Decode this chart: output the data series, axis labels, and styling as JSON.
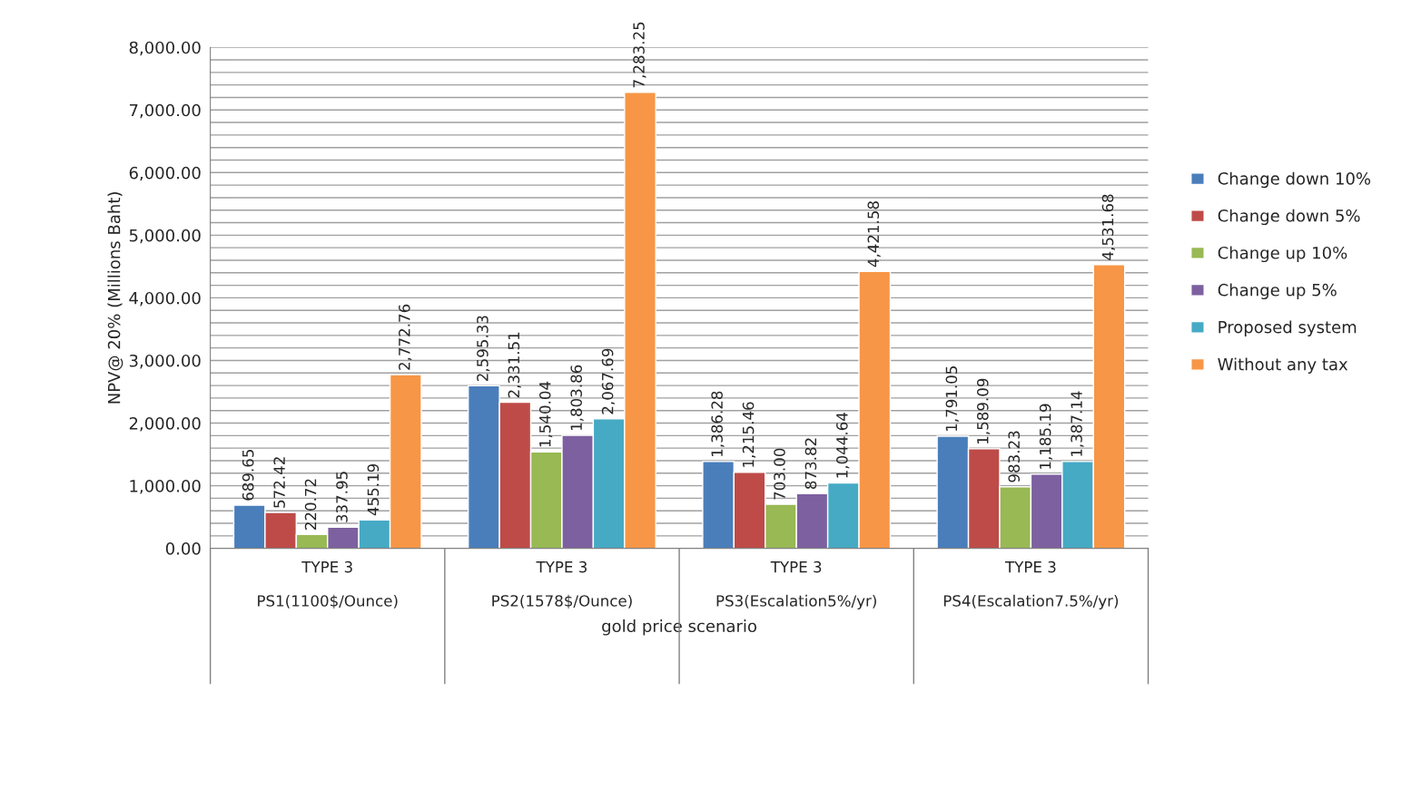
{
  "chart_data": {
    "type": "bar",
    "xlabel": "gold price scenario",
    "ylabel": "NPV@ 20% (Millions Baht)",
    "categories": [
      "TYPE 3\n\nPS1(1100$/Ounce)",
      "TYPE 3\n\nPS2(1578$/Ounce)",
      "TYPE 3\n\nPS3(Escalation5%/yr)",
      "TYPE 3\n\nPS4(Escalation7.5%/yr)"
    ],
    "series": [
      {
        "name": "Change down 10%",
        "color": "#4a7ebb",
        "values": [
          689.65,
          2595.33,
          1386.28,
          1791.05
        ],
        "value_labels": [
          "689.65",
          "2,595.33",
          "1,386.28",
          "1,791.05"
        ]
      },
      {
        "name": "Change down 5%",
        "color": "#be4b48",
        "values": [
          572.42,
          2331.51,
          1215.46,
          1589.09
        ],
        "value_labels": [
          "572.42",
          "2,331.51",
          "1,215.46",
          "1,589.09"
        ]
      },
      {
        "name": "Change up 10%",
        "color": "#98b954",
        "values": [
          220.72,
          1540.04,
          703.0,
          983.23
        ],
        "value_labels": [
          "220.72",
          "1,540.04",
          "703.00",
          "983.23"
        ]
      },
      {
        "name": "Change up 5%",
        "color": "#7d60a0",
        "values": [
          337.95,
          1803.86,
          873.82,
          1185.19
        ],
        "value_labels": [
          "337.95",
          "1,803.86",
          "873.82",
          "1,185.19"
        ]
      },
      {
        "name": "Proposed system",
        "color": "#46aac5",
        "values": [
          455.19,
          2067.69,
          1044.64,
          1387.14
        ],
        "value_labels": [
          "455.19",
          "2,067.69",
          "1,044.64",
          "1,387.14"
        ]
      },
      {
        "name": "Without any tax",
        "color": "#f79646",
        "values": [
          2772.76,
          7283.25,
          4421.58,
          4531.68
        ],
        "value_labels": [
          "2,772.76",
          "7,283.25",
          "4,421.58",
          "4,531.68"
        ]
      }
    ],
    "ylim": [
      0,
      8000
    ],
    "yticks": [
      {
        "value": 0,
        "label": "0.00"
      },
      {
        "value": 200,
        "label": null
      },
      {
        "value": 400,
        "label": null
      },
      {
        "value": 600,
        "label": null
      },
      {
        "value": 800,
        "label": null
      },
      {
        "value": 1000,
        "label": "1,000.00"
      },
      {
        "value": 1200,
        "label": null
      },
      {
        "value": 1400,
        "label": null
      },
      {
        "value": 1600,
        "label": null
      },
      {
        "value": 1800,
        "label": null
      },
      {
        "value": 2000,
        "label": "2,000.00"
      },
      {
        "value": 2200,
        "label": null
      },
      {
        "value": 2400,
        "label": null
      },
      {
        "value": 2600,
        "label": null
      },
      {
        "value": 2800,
        "label": null
      },
      {
        "value": 3000,
        "label": "3,000.00"
      },
      {
        "value": 3200,
        "label": null
      },
      {
        "value": 3400,
        "label": null
      },
      {
        "value": 3600,
        "label": null
      },
      {
        "value": 3800,
        "label": null
      },
      {
        "value": 4000,
        "label": "4,000.00"
      },
      {
        "value": 4200,
        "label": null
      },
      {
        "value": 4400,
        "label": null
      },
      {
        "value": 4600,
        "label": null
      },
      {
        "value": 4800,
        "label": null
      },
      {
        "value": 5000,
        "label": "5,000.00"
      },
      {
        "value": 5200,
        "label": null
      },
      {
        "value": 5400,
        "label": null
      },
      {
        "value": 5600,
        "label": null
      },
      {
        "value": 5800,
        "label": null
      },
      {
        "value": 6000,
        "label": "6,000.00"
      },
      {
        "value": 6200,
        "label": null
      },
      {
        "value": 6400,
        "label": null
      },
      {
        "value": 6600,
        "label": null
      },
      {
        "value": 6800,
        "label": null
      },
      {
        "value": 7000,
        "label": "7,000.00"
      },
      {
        "value": 7200,
        "label": null
      },
      {
        "value": 7400,
        "label": null
      },
      {
        "value": 7600,
        "label": null
      },
      {
        "value": 7800,
        "label": null
      },
      {
        "value": 8000,
        "label": "8,000.00"
      }
    ],
    "grid": "y",
    "legend": "right"
  }
}
